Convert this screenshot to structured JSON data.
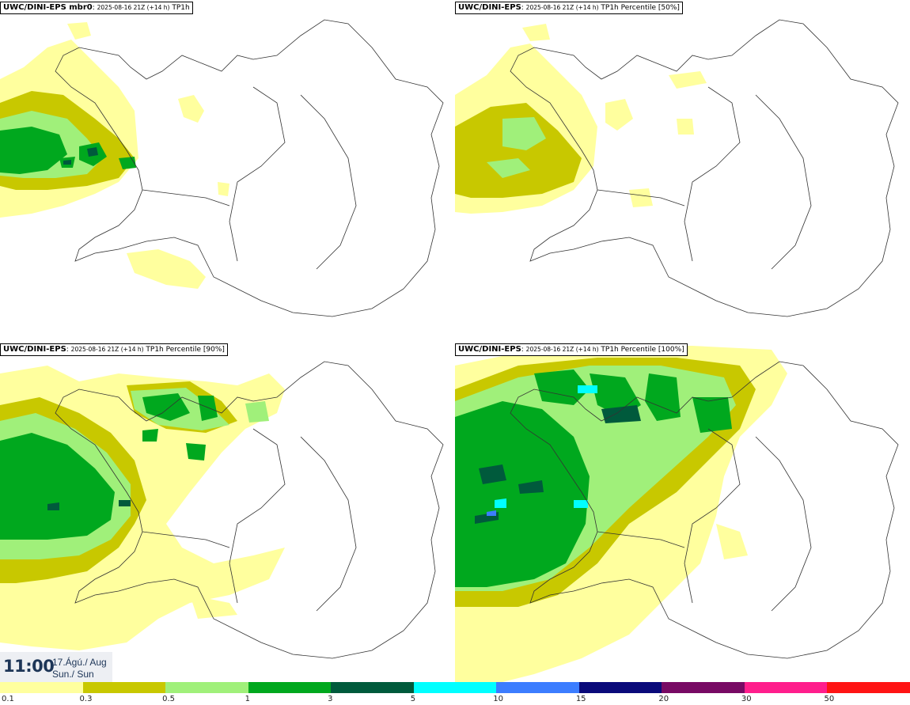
{
  "panels": [
    {
      "model": "UWC/DINI-EPS mbr0",
      "run": "2025-08-16 21Z (+14 h)",
      "field": "TP1h"
    },
    {
      "model": "UWC/DINI-EPS",
      "run": "2025-08-16 21Z (+14 h)",
      "field": "TP1h Percentile [50%]"
    },
    {
      "model": "UWC/DINI-EPS",
      "run": "2025-08-16 21Z (+14 h)",
      "field": "TP1h Percentile [90%]"
    },
    {
      "model": "UWC/DINI-EPS",
      "run": "2025-08-16 21Z (+14 h)",
      "field": "TP1h Percentile [100%]"
    }
  ],
  "valid_time": {
    "time": "11:00",
    "date_line1": "17.Ágú./ Aug",
    "date_line2": "Sun./ Sun"
  },
  "legend": {
    "colors": [
      "#ffff9e",
      "#c8c800",
      "#a0f07a",
      "#00a81e",
      "#005a3c",
      "#00ffff",
      "#3c7dff",
      "#0a0a7a",
      "#780a64",
      "#ff1e8c",
      "#ff1414"
    ],
    "labels": [
      "0.1",
      "0.3",
      "0.5",
      "1",
      "3",
      "5",
      "10",
      "15",
      "20",
      "30",
      "50"
    ]
  },
  "precip_colors": {
    "light_yellow": "#ffff9e",
    "olive": "#c8c800",
    "light_green": "#a0f07a",
    "green": "#00a81e",
    "dark_green": "#005a3c",
    "cyan": "#00ffff",
    "blue": "#3c7dff"
  }
}
